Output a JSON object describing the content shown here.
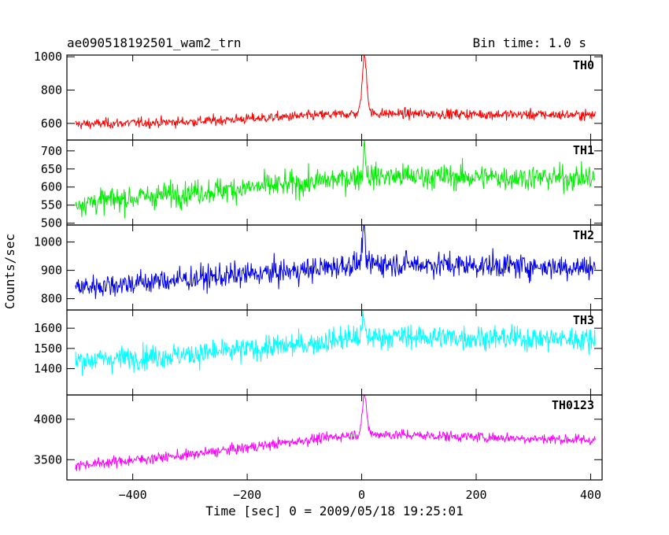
{
  "chart_data": {
    "type": "line",
    "title_left": "ae090518192501_wam2_trn",
    "title_right": "Bin time: 1.0 s",
    "xlabel": "Time [sec] 0 = 2009/05/18 19:25:01",
    "ylabel": "Counts/sec",
    "xlim": [
      -515,
      420
    ],
    "x_ticks": [
      -400,
      -200,
      0,
      200,
      400
    ],
    "x_tick_labels": [
      "−400",
      "−200",
      "0",
      "200",
      "400"
    ],
    "bin_time_s": 1.0,
    "x_range_data": [
      -500,
      408
    ],
    "panels": [
      {
        "name": "TH0",
        "color": "#ff0000",
        "ylim": [
          500,
          1010
        ],
        "y_ticks": [
          600,
          800,
          1000
        ],
        "trend": {
          "x": [
            -500,
            -300,
            -100,
            0,
            408
          ],
          "y": [
            595,
            610,
            645,
            660,
            650
          ]
        },
        "noise": 28,
        "peak": {
          "x": 5,
          "y": 1000,
          "width": 4
        }
      },
      {
        "name": "TH1",
        "color": "#00ee00",
        "ylim": [
          495,
          730
        ],
        "y_ticks": [
          500,
          550,
          600,
          650,
          700
        ],
        "trend": {
          "x": [
            -500,
            -300,
            -100,
            0,
            408
          ],
          "y": [
            555,
            585,
            610,
            630,
            625
          ]
        },
        "noise": 32,
        "peak": {
          "x": 5,
          "y": 720,
          "width": 2
        }
      },
      {
        "name": "TH2",
        "color": "#0000ee",
        "ylim": [
          760,
          1060
        ],
        "y_ticks": [
          800,
          900,
          1000
        ],
        "trend": {
          "x": [
            -500,
            -300,
            -100,
            0,
            408
          ],
          "y": [
            840,
            870,
            900,
            925,
            910
          ]
        },
        "noise": 40,
        "peak": {
          "x": 3,
          "y": 1060,
          "width": 2
        }
      },
      {
        "name": "TH3",
        "color": "#00ffff",
        "ylim": [
          1270,
          1690
        ],
        "y_ticks": [
          1400,
          1500,
          1600
        ],
        "trend": {
          "x": [
            -500,
            -300,
            -100,
            0,
            408
          ],
          "y": [
            1440,
            1470,
            1520,
            1560,
            1545
          ]
        },
        "noise": 55,
        "peak": {
          "x": 3,
          "y": 1650,
          "width": 2
        }
      },
      {
        "name": "TH0123",
        "color": "#ff00ff",
        "ylim": [
          3250,
          4300
        ],
        "y_ticks": [
          3500,
          4000
        ],
        "trend": {
          "x": [
            -500,
            -300,
            -100,
            0,
            408
          ],
          "y": [
            3430,
            3560,
            3740,
            3820,
            3740
          ]
        },
        "noise": 60,
        "peak": {
          "x": 5,
          "y": 4270,
          "width": 4
        }
      }
    ]
  }
}
